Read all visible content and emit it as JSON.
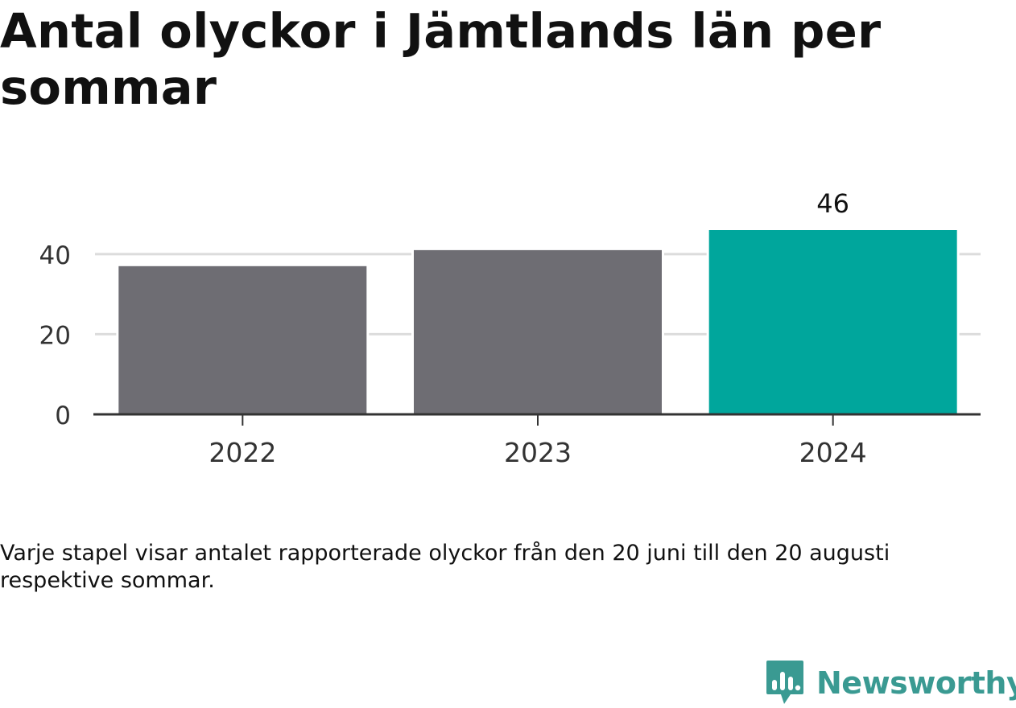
{
  "title": "Antal olyckor i Jämtlands län per sommar",
  "caption": "Varje stapel visar antalet rapporterade olyckor från den 20 juni till den 20 augusti respektive sommar.",
  "brand": "Newsworthy",
  "colors": {
    "bar": "#6e6d73",
    "highlight": "#00a69c",
    "grid": "#dcdcdc",
    "axis": "#333333",
    "brand": "#3a9a92"
  },
  "chart_data": {
    "type": "bar",
    "categories": [
      "2022",
      "2023",
      "2024"
    ],
    "values": [
      37,
      41,
      46
    ],
    "highlight_index": 2,
    "data_labels": [
      "",
      "",
      "46"
    ],
    "yticks": [
      0,
      20,
      40
    ],
    "ylim": [
      0,
      46
    ],
    "grid": true,
    "xlabel": "",
    "ylabel": ""
  }
}
